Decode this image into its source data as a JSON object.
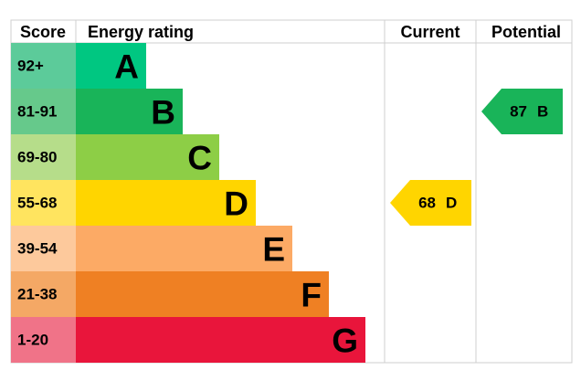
{
  "header": {
    "score": "Score",
    "rating": "Energy rating",
    "current": "Current",
    "potential": "Potential"
  },
  "bands": [
    {
      "score": "92+",
      "letter": "A",
      "color": "#00c781",
      "score_color": "#5ccb9a"
    },
    {
      "score": "81-91",
      "letter": "B",
      "color": "#19b459",
      "score_color": "#66c98b"
    },
    {
      "score": "69-80",
      "letter": "C",
      "color": "#8dce46",
      "score_color": "#b6dd8a"
    },
    {
      "score": "55-68",
      "letter": "D",
      "color": "#ffd500",
      "score_color": "#ffe45f"
    },
    {
      "score": "39-54",
      "letter": "E",
      "color": "#fcaa65",
      "score_color": "#fdc99c"
    },
    {
      "score": "21-38",
      "letter": "F",
      "color": "#ef8023",
      "score_color": "#f4a865"
    },
    {
      "score": "1-20",
      "letter": "G",
      "color": "#e9153b",
      "score_color": "#f07388"
    }
  ],
  "current": {
    "value": 68,
    "letter": "D"
  },
  "potential": {
    "value": 87,
    "letter": "B"
  }
}
